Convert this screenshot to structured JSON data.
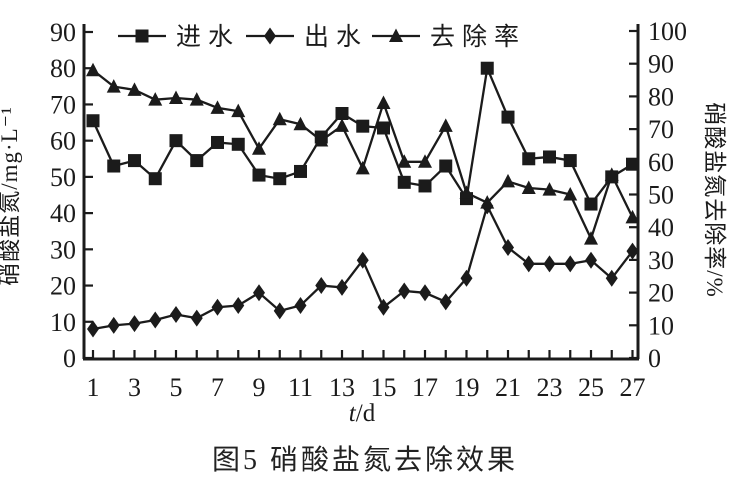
{
  "figure": {
    "caption": "图5 硝酸盐氮去除效果"
  },
  "chart_data": {
    "type": "line",
    "title": "",
    "xlabel": "t/d",
    "x": [
      1,
      2,
      3,
      4,
      5,
      6,
      7,
      8,
      9,
      10,
      11,
      12,
      13,
      14,
      15,
      16,
      17,
      18,
      19,
      20,
      21,
      22,
      23,
      24,
      25,
      26,
      27
    ],
    "x_tick_labels": [
      1,
      3,
      5,
      7,
      9,
      11,
      13,
      15,
      17,
      19,
      21,
      23,
      25,
      27
    ],
    "left_axis": {
      "label": "硝酸盐氮/mg·L⁻¹",
      "min": 0,
      "max": 90,
      "step": 10
    },
    "right_axis": {
      "label": "硝酸盐氮去除率/%",
      "min": 0,
      "max": 100,
      "step": 10
    },
    "grid": false,
    "legend_position": "top",
    "ink_color": "#1b1b1b",
    "series": [
      {
        "name": "进水",
        "axis": "left",
        "marker": "square",
        "values": [
          65.5,
          53,
          54.5,
          49.5,
          60,
          54.5,
          59.5,
          59,
          50.5,
          49.5,
          51.5,
          61,
          67.5,
          64,
          63.5,
          48.5,
          47.5,
          53,
          44,
          80,
          66.5,
          55,
          55.5,
          54.5,
          42.5,
          50,
          53.5
        ]
      },
      {
        "name": "出水",
        "axis": "left",
        "marker": "diamond",
        "values": [
          8,
          9,
          9.5,
          10.5,
          12,
          11,
          14,
          14.5,
          18,
          13,
          14.5,
          20,
          19.5,
          27,
          14,
          18.5,
          18,
          15.5,
          22,
          42,
          30.5,
          26,
          26,
          26,
          27,
          22,
          29.5
        ]
      },
      {
        "name": "去除率",
        "axis": "right",
        "marker": "triangle",
        "values": [
          88,
          83,
          82,
          79,
          79.5,
          79,
          76.5,
          75.5,
          64,
          73,
          71.5,
          66.5,
          71,
          58,
          78,
          60,
          60,
          71,
          50.5,
          47.5,
          54,
          52,
          51.5,
          50,
          36.5,
          56,
          43
        ]
      }
    ]
  }
}
